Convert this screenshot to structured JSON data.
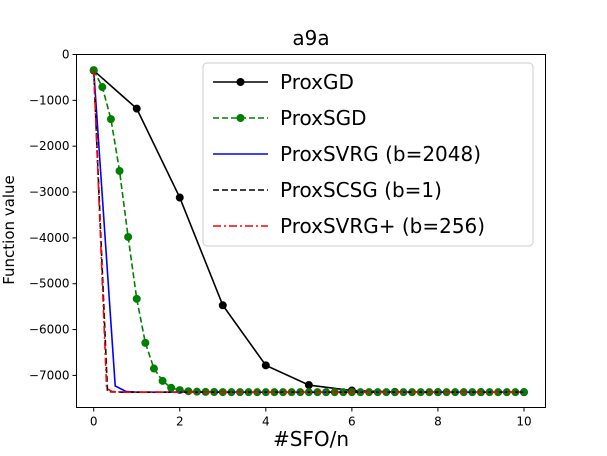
{
  "chart_data": {
    "type": "line",
    "title": "a9a",
    "xlabel": "#SFO/n",
    "ylabel": "Function value",
    "xlim": [
      -0.4,
      10.5
    ],
    "ylim": [
      -7700,
      0
    ],
    "xticks": [
      0,
      2,
      4,
      6,
      8,
      10
    ],
    "xtick_labels": [
      "0",
      "2",
      "4",
      "6",
      "8",
      "10"
    ],
    "yticks": [
      0,
      -1000,
      -2000,
      -3000,
      -4000,
      -5000,
      -6000,
      -7000
    ],
    "ytick_labels": [
      "0",
      "−1000",
      "−2000",
      "−3000",
      "−4000",
      "−5000",
      "−6000",
      "−7000"
    ],
    "grid": false,
    "legend_position": "top-right",
    "series": [
      {
        "name": "ProxGD",
        "color": "#000000",
        "linestyle": "solid",
        "marker": "circle",
        "x": [
          0,
          1,
          2,
          3,
          4,
          5,
          6,
          7,
          8,
          9,
          10
        ],
        "y": [
          -350,
          -1180,
          -3120,
          -5470,
          -6780,
          -7210,
          -7330,
          -7360,
          -7365,
          -7365,
          -7365
        ]
      },
      {
        "name": "ProxSGD",
        "color": "#008000",
        "linestyle": "dashed",
        "marker": "circle",
        "x": [
          0,
          0.2,
          0.4,
          0.6,
          0.8,
          1.0,
          1.2,
          1.4,
          1.6,
          1.8,
          2.0,
          2.2,
          2.4,
          2.6,
          2.8,
          3.0,
          3.2,
          3.4,
          3.6,
          3.8,
          4.0,
          4.2,
          4.4,
          4.6,
          4.8,
          5.0,
          5.2,
          5.4,
          5.6,
          5.8,
          6.0,
          6.2,
          6.4,
          6.6,
          6.8,
          7.0,
          7.2,
          7.4,
          7.6,
          7.8,
          8.0,
          8.2,
          8.4,
          8.6,
          8.8,
          9.0,
          9.2,
          9.4,
          9.6,
          9.8,
          10.0
        ],
        "y": [
          -340,
          -710,
          -1410,
          -2540,
          -3980,
          -5330,
          -6290,
          -6850,
          -7120,
          -7270,
          -7320,
          -7345,
          -7355,
          -7360,
          -7362,
          -7364,
          -7365,
          -7365,
          -7365,
          -7365,
          -7365,
          -7365,
          -7365,
          -7365,
          -7365,
          -7365,
          -7365,
          -7365,
          -7365,
          -7365,
          -7365,
          -7365,
          -7365,
          -7365,
          -7365,
          -7365,
          -7365,
          -7365,
          -7365,
          -7365,
          -7365,
          -7365,
          -7365,
          -7365,
          -7365,
          -7365,
          -7365,
          -7365,
          -7365,
          -7365,
          -7365
        ]
      },
      {
        "name": "ProxSVRG (b=2048)",
        "color": "#0000ff",
        "linestyle": "solid",
        "marker": "none",
        "x": [
          0,
          0.5,
          0.75,
          1.0,
          10.0
        ],
        "y": [
          -340,
          -7230,
          -7350,
          -7365,
          -7365
        ]
      },
      {
        "name": "ProxSCSG (b=1)",
        "color": "#000000",
        "linestyle": "dashed",
        "marker": "none",
        "x": [
          0,
          0.32,
          0.45,
          0.7,
          10.0
        ],
        "y": [
          -340,
          -7350,
          -7360,
          -7365,
          -7365
        ]
      },
      {
        "name": "ProxSVRG+ (b=256)",
        "color": "#ff0000",
        "linestyle": "dashdot",
        "marker": "none",
        "x": [
          0,
          0.3,
          0.42,
          0.7,
          10.0
        ],
        "y": [
          -340,
          -7280,
          -7350,
          -7365,
          -7365
        ]
      }
    ]
  }
}
